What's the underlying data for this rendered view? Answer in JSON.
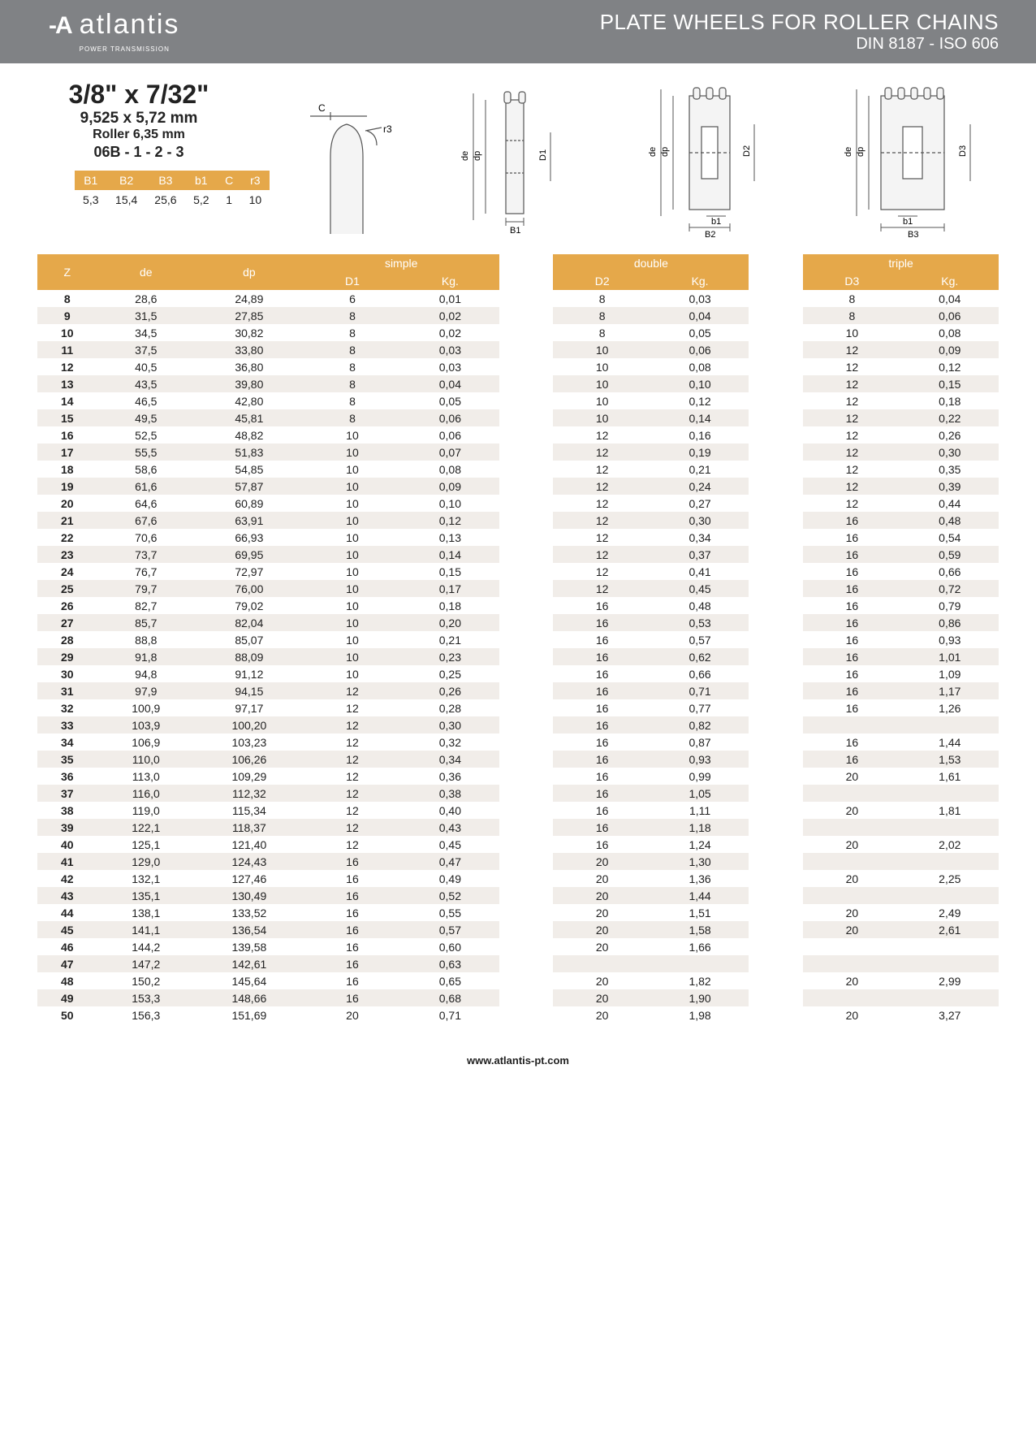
{
  "header": {
    "logo_word": "atlantis",
    "logo_sub": "POWER TRANSMISSION",
    "title_line1": "PLATE WHEELS FOR ROLLER CHAINS",
    "title_line2": "DIN 8187 - ISO 606"
  },
  "spec": {
    "size_imperial": "3/8\" x 7/32\"",
    "size_mm": "9,525 x 5,72 mm",
    "roller": "Roller 6,35 mm",
    "part_code": "06B - 1 - 2 - 3"
  },
  "mini_table": {
    "headers": [
      "B1",
      "B2",
      "B3",
      "b1",
      "C",
      "r3"
    ],
    "values": [
      "5,3",
      "15,4",
      "25,6",
      "5,2",
      "1",
      "10"
    ]
  },
  "diagram_labels": {
    "c": "C",
    "r3": "r3",
    "de": "de",
    "dp": "dp",
    "D1": "D1",
    "D2": "D2",
    "D3": "D3",
    "B1": "B1",
    "b1": "b1",
    "B2": "B2",
    "B3": "B3"
  },
  "table": {
    "group_headers": {
      "z": "Z",
      "de": "de",
      "dp": "dp",
      "simple": "simple",
      "double": "double",
      "triple": "triple"
    },
    "sub_headers": {
      "d1": "D1",
      "d2": "D2",
      "d3": "D3",
      "kg": "Kg."
    },
    "rows": [
      {
        "z": "8",
        "de": "28,6",
        "dp": "24,89",
        "d1": "6",
        "k1": "0,01",
        "d2": "8",
        "k2": "0,03",
        "d3": "8",
        "k3": "0,04"
      },
      {
        "z": "9",
        "de": "31,5",
        "dp": "27,85",
        "d1": "8",
        "k1": "0,02",
        "d2": "8",
        "k2": "0,04",
        "d3": "8",
        "k3": "0,06"
      },
      {
        "z": "10",
        "de": "34,5",
        "dp": "30,82",
        "d1": "8",
        "k1": "0,02",
        "d2": "8",
        "k2": "0,05",
        "d3": "10",
        "k3": "0,08"
      },
      {
        "z": "11",
        "de": "37,5",
        "dp": "33,80",
        "d1": "8",
        "k1": "0,03",
        "d2": "10",
        "k2": "0,06",
        "d3": "12",
        "k3": "0,09"
      },
      {
        "z": "12",
        "de": "40,5",
        "dp": "36,80",
        "d1": "8",
        "k1": "0,03",
        "d2": "10",
        "k2": "0,08",
        "d3": "12",
        "k3": "0,12"
      },
      {
        "z": "13",
        "de": "43,5",
        "dp": "39,80",
        "d1": "8",
        "k1": "0,04",
        "d2": "10",
        "k2": "0,10",
        "d3": "12",
        "k3": "0,15"
      },
      {
        "z": "14",
        "de": "46,5",
        "dp": "42,80",
        "d1": "8",
        "k1": "0,05",
        "d2": "10",
        "k2": "0,12",
        "d3": "12",
        "k3": "0,18"
      },
      {
        "z": "15",
        "de": "49,5",
        "dp": "45,81",
        "d1": "8",
        "k1": "0,06",
        "d2": "10",
        "k2": "0,14",
        "d3": "12",
        "k3": "0,22"
      },
      {
        "z": "16",
        "de": "52,5",
        "dp": "48,82",
        "d1": "10",
        "k1": "0,06",
        "d2": "12",
        "k2": "0,16",
        "d3": "12",
        "k3": "0,26"
      },
      {
        "z": "17",
        "de": "55,5",
        "dp": "51,83",
        "d1": "10",
        "k1": "0,07",
        "d2": "12",
        "k2": "0,19",
        "d3": "12",
        "k3": "0,30"
      },
      {
        "z": "18",
        "de": "58,6",
        "dp": "54,85",
        "d1": "10",
        "k1": "0,08",
        "d2": "12",
        "k2": "0,21",
        "d3": "12",
        "k3": "0,35"
      },
      {
        "z": "19",
        "de": "61,6",
        "dp": "57,87",
        "d1": "10",
        "k1": "0,09",
        "d2": "12",
        "k2": "0,24",
        "d3": "12",
        "k3": "0,39"
      },
      {
        "z": "20",
        "de": "64,6",
        "dp": "60,89",
        "d1": "10",
        "k1": "0,10",
        "d2": "12",
        "k2": "0,27",
        "d3": "12",
        "k3": "0,44"
      },
      {
        "z": "21",
        "de": "67,6",
        "dp": "63,91",
        "d1": "10",
        "k1": "0,12",
        "d2": "12",
        "k2": "0,30",
        "d3": "16",
        "k3": "0,48"
      },
      {
        "z": "22",
        "de": "70,6",
        "dp": "66,93",
        "d1": "10",
        "k1": "0,13",
        "d2": "12",
        "k2": "0,34",
        "d3": "16",
        "k3": "0,54"
      },
      {
        "z": "23",
        "de": "73,7",
        "dp": "69,95",
        "d1": "10",
        "k1": "0,14",
        "d2": "12",
        "k2": "0,37",
        "d3": "16",
        "k3": "0,59"
      },
      {
        "z": "24",
        "de": "76,7",
        "dp": "72,97",
        "d1": "10",
        "k1": "0,15",
        "d2": "12",
        "k2": "0,41",
        "d3": "16",
        "k3": "0,66"
      },
      {
        "z": "25",
        "de": "79,7",
        "dp": "76,00",
        "d1": "10",
        "k1": "0,17",
        "d2": "12",
        "k2": "0,45",
        "d3": "16",
        "k3": "0,72"
      },
      {
        "z": "26",
        "de": "82,7",
        "dp": "79,02",
        "d1": "10",
        "k1": "0,18",
        "d2": "16",
        "k2": "0,48",
        "d3": "16",
        "k3": "0,79"
      },
      {
        "z": "27",
        "de": "85,7",
        "dp": "82,04",
        "d1": "10",
        "k1": "0,20",
        "d2": "16",
        "k2": "0,53",
        "d3": "16",
        "k3": "0,86"
      },
      {
        "z": "28",
        "de": "88,8",
        "dp": "85,07",
        "d1": "10",
        "k1": "0,21",
        "d2": "16",
        "k2": "0,57",
        "d3": "16",
        "k3": "0,93"
      },
      {
        "z": "29",
        "de": "91,8",
        "dp": "88,09",
        "d1": "10",
        "k1": "0,23",
        "d2": "16",
        "k2": "0,62",
        "d3": "16",
        "k3": "1,01"
      },
      {
        "z": "30",
        "de": "94,8",
        "dp": "91,12",
        "d1": "10",
        "k1": "0,25",
        "d2": "16",
        "k2": "0,66",
        "d3": "16",
        "k3": "1,09"
      },
      {
        "z": "31",
        "de": "97,9",
        "dp": "94,15",
        "d1": "12",
        "k1": "0,26",
        "d2": "16",
        "k2": "0,71",
        "d3": "16",
        "k3": "1,17"
      },
      {
        "z": "32",
        "de": "100,9",
        "dp": "97,17",
        "d1": "12",
        "k1": "0,28",
        "d2": "16",
        "k2": "0,77",
        "d3": "16",
        "k3": "1,26"
      },
      {
        "z": "33",
        "de": "103,9",
        "dp": "100,20",
        "d1": "12",
        "k1": "0,30",
        "d2": "16",
        "k2": "0,82",
        "d3": "",
        "k3": ""
      },
      {
        "z": "34",
        "de": "106,9",
        "dp": "103,23",
        "d1": "12",
        "k1": "0,32",
        "d2": "16",
        "k2": "0,87",
        "d3": "16",
        "k3": "1,44"
      },
      {
        "z": "35",
        "de": "110,0",
        "dp": "106,26",
        "d1": "12",
        "k1": "0,34",
        "d2": "16",
        "k2": "0,93",
        "d3": "16",
        "k3": "1,53"
      },
      {
        "z": "36",
        "de": "113,0",
        "dp": "109,29",
        "d1": "12",
        "k1": "0,36",
        "d2": "16",
        "k2": "0,99",
        "d3": "20",
        "k3": "1,61"
      },
      {
        "z": "37",
        "de": "116,0",
        "dp": "112,32",
        "d1": "12",
        "k1": "0,38",
        "d2": "16",
        "k2": "1,05",
        "d3": "",
        "k3": ""
      },
      {
        "z": "38",
        "de": "119,0",
        "dp": "115,34",
        "d1": "12",
        "k1": "0,40",
        "d2": "16",
        "k2": "1,11",
        "d3": "20",
        "k3": "1,81"
      },
      {
        "z": "39",
        "de": "122,1",
        "dp": "118,37",
        "d1": "12",
        "k1": "0,43",
        "d2": "16",
        "k2": "1,18",
        "d3": "",
        "k3": ""
      },
      {
        "z": "40",
        "de": "125,1",
        "dp": "121,40",
        "d1": "12",
        "k1": "0,45",
        "d2": "16",
        "k2": "1,24",
        "d3": "20",
        "k3": "2,02"
      },
      {
        "z": "41",
        "de": "129,0",
        "dp": "124,43",
        "d1": "16",
        "k1": "0,47",
        "d2": "20",
        "k2": "1,30",
        "d3": "",
        "k3": ""
      },
      {
        "z": "42",
        "de": "132,1",
        "dp": "127,46",
        "d1": "16",
        "k1": "0,49",
        "d2": "20",
        "k2": "1,36",
        "d3": "20",
        "k3": "2,25"
      },
      {
        "z": "43",
        "de": "135,1",
        "dp": "130,49",
        "d1": "16",
        "k1": "0,52",
        "d2": "20",
        "k2": "1,44",
        "d3": "",
        "k3": ""
      },
      {
        "z": "44",
        "de": "138,1",
        "dp": "133,52",
        "d1": "16",
        "k1": "0,55",
        "d2": "20",
        "k2": "1,51",
        "d3": "20",
        "k3": "2,49"
      },
      {
        "z": "45",
        "de": "141,1",
        "dp": "136,54",
        "d1": "16",
        "k1": "0,57",
        "d2": "20",
        "k2": "1,58",
        "d3": "20",
        "k3": "2,61"
      },
      {
        "z": "46",
        "de": "144,2",
        "dp": "139,58",
        "d1": "16",
        "k1": "0,60",
        "d2": "20",
        "k2": "1,66",
        "d3": "",
        "k3": ""
      },
      {
        "z": "47",
        "de": "147,2",
        "dp": "142,61",
        "d1": "16",
        "k1": "0,63",
        "d2": "",
        "k2": "",
        "d3": "",
        "k3": ""
      },
      {
        "z": "48",
        "de": "150,2",
        "dp": "145,64",
        "d1": "16",
        "k1": "0,65",
        "d2": "20",
        "k2": "1,82",
        "d3": "20",
        "k3": "2,99"
      },
      {
        "z": "49",
        "de": "153,3",
        "dp": "148,66",
        "d1": "16",
        "k1": "0,68",
        "d2": "20",
        "k2": "1,90",
        "d3": "",
        "k3": ""
      },
      {
        "z": "50",
        "de": "156,3",
        "dp": "151,69",
        "d1": "20",
        "k1": "0,71",
        "d2": "20",
        "k2": "1,98",
        "d3": "20",
        "k3": "3,27"
      }
    ]
  },
  "footer": {
    "url": "www.atlantis-pt.com"
  },
  "colors": {
    "header_bg": "#808285",
    "accent": "#e5a84a",
    "stripe": "#f1ede9",
    "text": "#222222"
  }
}
